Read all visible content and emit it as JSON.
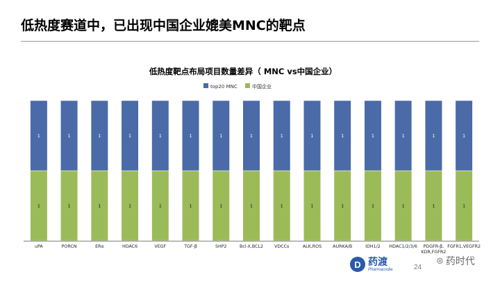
{
  "slide": {
    "title": "低热度赛道中，已出现中国企业媲美MNC的靶点",
    "page_number": "24"
  },
  "brand": {
    "logo_mark": "D",
    "logo_cn": "药渡",
    "logo_en": "Pharmacodia"
  },
  "watermark": {
    "icon": "wechat-icon",
    "text": "药时代"
  },
  "colors": {
    "mnc": "#4a6aa8",
    "china": "#9bbb59",
    "axis": "#7f7f7f"
  },
  "chart_data": {
    "type": "bar",
    "stacked": true,
    "title": "低热度靶点布局项目数量差异（ MNC vs中国企业）",
    "legend_position": "top-center",
    "categories": [
      "uPA",
      "PORCN",
      "ERα",
      "HDAC6",
      "VEGF",
      "TGF-β",
      "SHP2",
      "Bcl-X,BCL2",
      "VDCCs",
      "ALK,ROS",
      "AURKA/B",
      "IDH1/2",
      "HDAC1/2/3/6",
      "PDGFR-β,KDR,FGFR2",
      "FGFR1,VEGFR2"
    ],
    "series": [
      {
        "name": "中国企业",
        "values": [
          1,
          1,
          1,
          1,
          1,
          1,
          1,
          1,
          1,
          1,
          1,
          1,
          1,
          1,
          1
        ]
      },
      {
        "name": "top20 MNC",
        "values": [
          1,
          1,
          1,
          1,
          1,
          1,
          1,
          1,
          1,
          1,
          1,
          1,
          1,
          1,
          1
        ]
      }
    ],
    "legend_order": [
      "top20 MNC",
      "中国企业"
    ],
    "ylim": [
      0,
      2
    ],
    "xlabel": "",
    "ylabel": "",
    "grid": false
  }
}
